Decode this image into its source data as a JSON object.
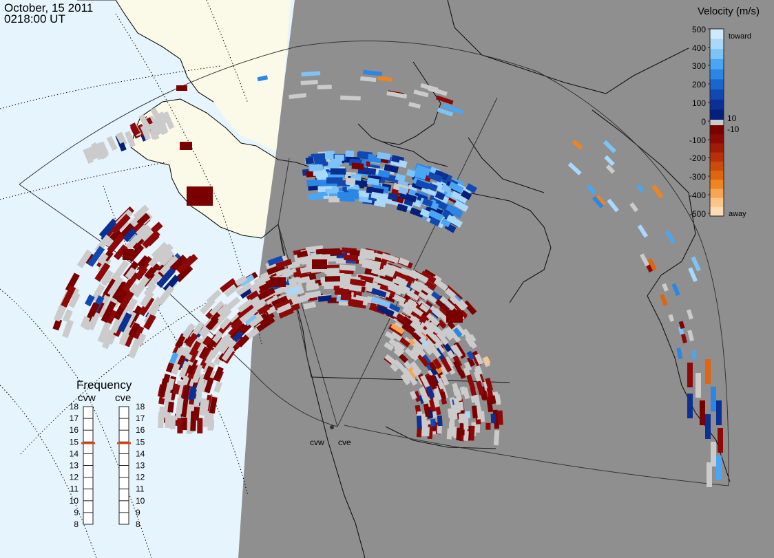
{
  "title": {
    "date": "October, 15 2011",
    "time": "0218:00 UT"
  },
  "colors": {
    "night": "#8f8f8f",
    "day_ocean": "#e6f4fd",
    "day_land": "#fbf9e8",
    "ground_scatter": "#cbcbcb",
    "coast": "#111111",
    "fov_outline": "#333333"
  },
  "velocity_scale": {
    "title": "Velocity (m/s)",
    "ticks": [
      "500",
      "400",
      "300",
      "200",
      "100",
      "10",
      "0",
      "-10",
      "-100",
      "-200",
      "-300",
      "-400",
      "-500"
    ],
    "toward_label": "toward",
    "away_label": "away",
    "toward_colors": [
      "#cfeafd",
      "#a9d8fb",
      "#7ec3f8",
      "#4aa6f2",
      "#2b86e6",
      "#1a66d1",
      "#1248b1",
      "#0c2f94",
      "#061f7a"
    ],
    "away_colors": [
      "#7a0000",
      "#8e0808",
      "#a01b08",
      "#b73008",
      "#cc4a0a",
      "#df6510",
      "#ef8420",
      "#f7a552",
      "#fbc489",
      "#fddcb5"
    ]
  },
  "frequency_panel": {
    "title": "Frequency",
    "radars": [
      {
        "name": "cvw",
        "freq": 14.9
      },
      {
        "name": "cve",
        "freq": 14.9
      }
    ],
    "ticks": [
      "18",
      "17",
      "16",
      "15",
      "14",
      "13",
      "12",
      "11",
      "10",
      "9",
      "8"
    ]
  },
  "radar_sites": [
    {
      "code": "cvw"
    },
    {
      "code": "cve"
    }
  ]
}
